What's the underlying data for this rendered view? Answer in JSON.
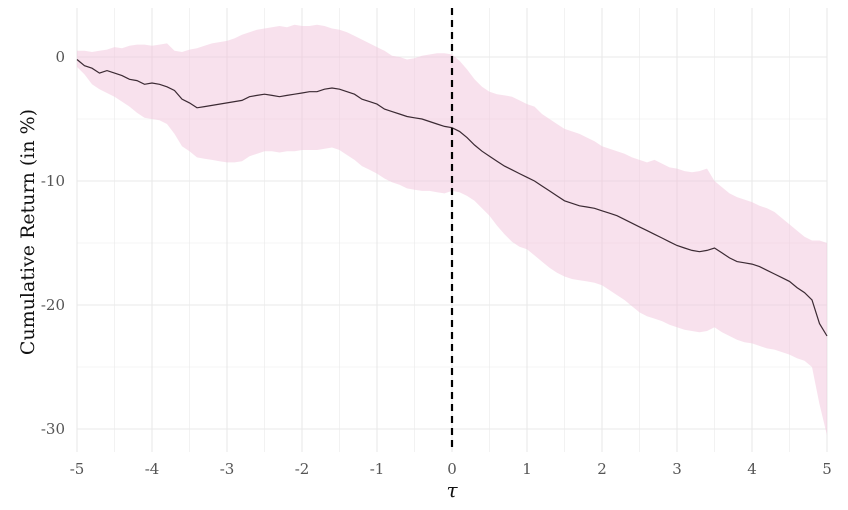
{
  "chart_data": {
    "type": "line",
    "title": "",
    "xlabel": "τ",
    "ylabel": "Cumulative Return (in %)",
    "xlim": [
      -5,
      5
    ],
    "ylim": [
      -32,
      4
    ],
    "grid": true,
    "legend": "none",
    "x_ticks": [
      -5,
      -4,
      -3,
      -2,
      -1,
      0,
      1,
      2,
      3,
      4,
      5
    ],
    "x_tick_labels": [
      "-5",
      "-4",
      "-3",
      "-2",
      "-1",
      "0",
      "1",
      "2",
      "3",
      "4",
      "5"
    ],
    "y_ticks": [
      0,
      -10,
      -20,
      -30
    ],
    "y_tick_labels": [
      "0",
      "-10",
      "-20",
      "-30"
    ],
    "vertical_reference_line": {
      "x": 0,
      "style": "dashed",
      "color": "#000000"
    },
    "colors": {
      "line": "#3b2a33",
      "band": "#f1c3dc",
      "grid": "#e9e9e9"
    },
    "series": [
      {
        "x": [
          -5,
          -4.9,
          -4.8,
          -4.7,
          -4.6,
          -4.5,
          -4.4,
          -4.3,
          -4.2,
          -4.1,
          -4.0,
          -3.9,
          -3.8,
          -3.7,
          -3.6,
          -3.5,
          -3.4,
          -3.3,
          -3.2,
          -3.1,
          -3.0,
          -2.9,
          -2.8,
          -2.7,
          -2.6,
          -2.5,
          -2.4,
          -2.3,
          -2.2,
          -2.1,
          -2.0,
          -1.9,
          -1.8,
          -1.7,
          -1.6,
          -1.5,
          -1.4,
          -1.3,
          -1.2,
          -1.1,
          -1.0,
          -0.9,
          -0.8,
          -0.7,
          -0.6,
          -0.5,
          -0.4,
          -0.3,
          -0.2,
          -0.1,
          0.0,
          0.1,
          0.2,
          0.3,
          0.4,
          0.5,
          0.6,
          0.7,
          0.8,
          0.9,
          1.0,
          1.1,
          1.2,
          1.3,
          1.4,
          1.5,
          1.6,
          1.7,
          1.8,
          1.9,
          2.0,
          2.1,
          2.2,
          2.3,
          2.4,
          2.5,
          2.6,
          2.7,
          2.8,
          2.9,
          3.0,
          3.1,
          3.2,
          3.3,
          3.4,
          3.5,
          3.6,
          3.7,
          3.8,
          3.9,
          4.0,
          4.1,
          4.2,
          4.3,
          4.4,
          4.5,
          4.6,
          4.7,
          4.8,
          4.9,
          5.0
        ],
        "y": [
          -0.2,
          -0.7,
          -0.9,
          -1.3,
          -1.1,
          -1.3,
          -1.5,
          -1.8,
          -1.9,
          -2.2,
          -2.1,
          -2.2,
          -2.4,
          -2.7,
          -3.4,
          -3.7,
          -4.1,
          -4.0,
          -3.9,
          -3.8,
          -3.7,
          -3.6,
          -3.5,
          -3.2,
          -3.1,
          -3.0,
          -3.1,
          -3.2,
          -3.1,
          -3.0,
          -2.9,
          -2.8,
          -2.8,
          -2.6,
          -2.5,
          -2.6,
          -2.8,
          -3.0,
          -3.4,
          -3.6,
          -3.8,
          -4.2,
          -4.4,
          -4.6,
          -4.8,
          -4.9,
          -5.0,
          -5.2,
          -5.4,
          -5.6,
          -5.7,
          -6.0,
          -6.5,
          -7.1,
          -7.6,
          -8.0,
          -8.4,
          -8.8,
          -9.1,
          -9.4,
          -9.7,
          -10.0,
          -10.4,
          -10.8,
          -11.2,
          -11.6,
          -11.8,
          -12.0,
          -12.1,
          -12.2,
          -12.4,
          -12.6,
          -12.8,
          -13.1,
          -13.4,
          -13.7,
          -14.0,
          -14.3,
          -14.6,
          -14.9,
          -15.2,
          -15.4,
          -15.6,
          -15.7,
          -15.6,
          -15.4,
          -15.8,
          -16.2,
          -16.5,
          -16.6,
          -16.7,
          -16.9,
          -17.2,
          -17.5,
          -17.8,
          -18.1,
          -18.6,
          -19.0,
          -19.6,
          -21.5,
          -22.5
        ]
      }
    ],
    "band": {
      "upper": [
        0.5,
        0.5,
        0.4,
        0.5,
        0.6,
        0.8,
        0.7,
        0.9,
        1.0,
        1.0,
        0.9,
        1.0,
        1.1,
        0.5,
        0.4,
        0.6,
        0.7,
        0.9,
        1.1,
        1.2,
        1.3,
        1.5,
        1.8,
        2.0,
        2.2,
        2.3,
        2.4,
        2.5,
        2.4,
        2.6,
        2.5,
        2.5,
        2.6,
        2.5,
        2.3,
        2.2,
        2.0,
        1.7,
        1.4,
        1.1,
        0.8,
        0.5,
        0.1,
        0.0,
        -0.2,
        -0.1,
        0.1,
        0.2,
        0.3,
        0.3,
        0.2,
        -0.3,
        -1.0,
        -1.8,
        -2.4,
        -2.8,
        -3.0,
        -3.1,
        -3.2,
        -3.5,
        -3.8,
        -4.0,
        -4.6,
        -5.0,
        -5.4,
        -5.8,
        -6.0,
        -6.2,
        -6.5,
        -6.8,
        -7.2,
        -7.4,
        -7.6,
        -7.8,
        -8.1,
        -8.3,
        -8.5,
        -8.3,
        -8.6,
        -8.9,
        -9.0,
        -9.2,
        -9.3,
        -9.2,
        -9.0,
        -10.0,
        -10.5,
        -11.0,
        -11.3,
        -11.5,
        -11.7,
        -12.0,
        -12.2,
        -12.5,
        -13.0,
        -13.5,
        -14.0,
        -14.5,
        -14.8,
        -14.8,
        -15.0
      ],
      "lower": [
        -0.8,
        -1.4,
        -2.2,
        -2.6,
        -2.9,
        -3.2,
        -3.6,
        -4.0,
        -4.5,
        -4.9,
        -5.0,
        -5.1,
        -5.4,
        -6.2,
        -7.2,
        -7.6,
        -8.1,
        -8.2,
        -8.3,
        -8.4,
        -8.5,
        -8.5,
        -8.4,
        -8.0,
        -7.8,
        -7.6,
        -7.6,
        -7.7,
        -7.6,
        -7.6,
        -7.5,
        -7.5,
        -7.5,
        -7.4,
        -7.3,
        -7.5,
        -7.9,
        -8.3,
        -8.8,
        -9.1,
        -9.4,
        -9.8,
        -10.1,
        -10.3,
        -10.6,
        -10.7,
        -10.8,
        -10.8,
        -10.9,
        -11.0,
        -10.8,
        -10.9,
        -11.2,
        -11.6,
        -12.2,
        -12.8,
        -13.6,
        -14.3,
        -14.9,
        -15.3,
        -15.5,
        -16.0,
        -16.5,
        -17.0,
        -17.4,
        -17.7,
        -17.9,
        -18.0,
        -18.1,
        -18.2,
        -18.4,
        -18.8,
        -19.2,
        -19.6,
        -20.1,
        -20.6,
        -20.9,
        -21.1,
        -21.3,
        -21.6,
        -21.8,
        -22.0,
        -22.1,
        -22.2,
        -22.1,
        -21.8,
        -22.2,
        -22.5,
        -22.8,
        -23.0,
        -23.1,
        -23.3,
        -23.5,
        -23.6,
        -23.8,
        -24.0,
        -24.3,
        -24.5,
        -25.0,
        -28.0,
        -30.5
      ]
    }
  }
}
